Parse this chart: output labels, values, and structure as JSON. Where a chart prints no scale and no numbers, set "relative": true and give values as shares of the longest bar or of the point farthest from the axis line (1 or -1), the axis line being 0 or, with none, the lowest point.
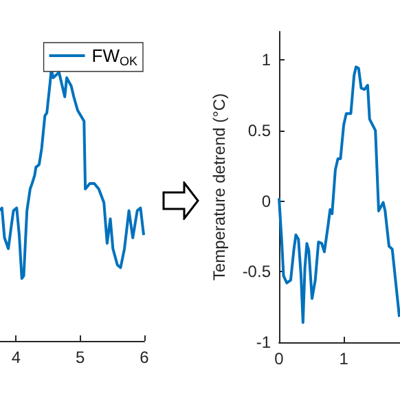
{
  "chart_data": [
    {
      "type": "line",
      "relative": true,
      "x": [
        3.75,
        3.78,
        3.82,
        3.88,
        3.93,
        3.96,
        4.01,
        4.05,
        4.09,
        4.12,
        4.17,
        4.22,
        4.25,
        4.29,
        4.31,
        4.36,
        4.4,
        4.45,
        4.48,
        4.53,
        4.55,
        4.58,
        4.67,
        4.76,
        4.79,
        4.86,
        4.9,
        4.96,
        5.06,
        5.08,
        5.15,
        5.22,
        5.29,
        5.37,
        5.42,
        5.47,
        5.51,
        5.58,
        5.63,
        5.69,
        5.76,
        5.82,
        5.89,
        5.94,
        5.99
      ],
      "xlim": [
        3.75,
        6
      ],
      "xticks": [
        4,
        5,
        6
      ],
      "legend": "top right",
      "tick_labels": "x",
      "series": [
        {
          "name": "FW$_{OK}$",
          "color": "#0072bd",
          "values": [
            0.48,
            0.49,
            0.38,
            0.34,
            0.43,
            0.48,
            0.49,
            0.39,
            0.23,
            0.24,
            0.48,
            0.56,
            0.58,
            0.61,
            0.64,
            0.65,
            0.71,
            0.83,
            0.84,
            0.95,
            1.0,
            0.97,
            0.99,
            0.9,
            0.97,
            0.94,
            0.9,
            0.85,
            0.81,
            0.56,
            0.58,
            0.58,
            0.56,
            0.51,
            0.36,
            0.45,
            0.34,
            0.28,
            0.27,
            0.34,
            0.48,
            0.38,
            0.48,
            0.49,
            0.39
          ]
        }
      ]
    },
    {
      "type": "line",
      "x": [
        0,
        0.04,
        0.07,
        0.12,
        0.18,
        0.23,
        0.26,
        0.3,
        0.34,
        0.37,
        0.4,
        0.43,
        0.46,
        0.51,
        0.56,
        0.61,
        0.66,
        0.7,
        0.75,
        0.79,
        0.82,
        0.87,
        0.91,
        0.95,
        1.0,
        1.04,
        1.11,
        1.16,
        1.19,
        1.23,
        1.27,
        1.32,
        1.37,
        1.4,
        1.49,
        1.54,
        1.61,
        1.64,
        1.7,
        1.75,
        1.86
      ],
      "xlim": [
        0,
        1.87
      ],
      "xticks": [
        0,
        1
      ],
      "ylim": [
        -1,
        1.2
      ],
      "yticks": [
        -1,
        -0.5,
        0,
        0.5,
        1
      ],
      "ylabel": "Temperature detrend (°C)",
      "series": [
        {
          "color": "#0072bd",
          "values": [
            0.02,
            -0.27,
            -0.53,
            -0.58,
            -0.56,
            -0.34,
            -0.24,
            -0.27,
            -0.53,
            -0.86,
            -0.47,
            -0.3,
            -0.35,
            -0.69,
            -0.56,
            -0.29,
            -0.3,
            -0.36,
            -0.2,
            -0.06,
            -0.09,
            0.22,
            0.3,
            0.3,
            0.54,
            0.62,
            0.62,
            0.89,
            0.95,
            0.94,
            0.8,
            0.79,
            0.82,
            0.58,
            0.5,
            -0.07,
            -0.01,
            -0.07,
            -0.32,
            -0.34,
            -0.82
          ]
        }
      ]
    }
  ]
}
